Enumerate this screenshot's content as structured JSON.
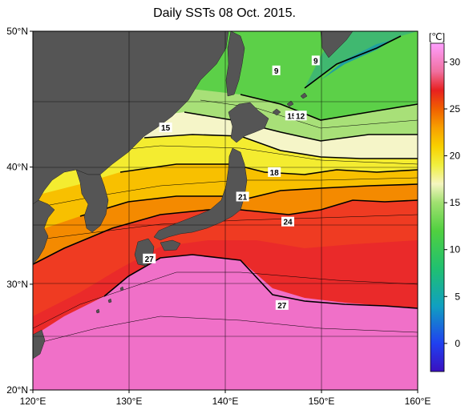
{
  "title": "Daily SSTs 08 Oct. 2015.",
  "map": {
    "lon_range": [
      120,
      160
    ],
    "lat_range": [
      20,
      50
    ],
    "x_ticks": [
      {
        "lon": 120,
        "label": "120°E"
      },
      {
        "lon": 130,
        "label": "130°E"
      },
      {
        "lon": 140,
        "label": "140°E"
      },
      {
        "lon": 150,
        "label": "150°E"
      },
      {
        "lon": 160,
        "label": "160°E"
      }
    ],
    "y_ticks": [
      {
        "lat": 50,
        "label": "50°N"
      },
      {
        "lat": 40,
        "label": "40°N"
      },
      {
        "lat": 30,
        "label": "30°N"
      },
      {
        "lat": 20,
        "label": "20°N"
      }
    ],
    "land_color": "#555555",
    "isotherm_labels": [
      {
        "text": "9",
        "lon": 145.3,
        "lat": 47.3
      },
      {
        "text": "9",
        "lon": 149.4,
        "lat": 48.0
      },
      {
        "text": "15",
        "lon": 133.8,
        "lat": 43.1
      },
      {
        "text": "15",
        "lon": 146.9,
        "lat": 44.0
      },
      {
        "text": "12",
        "lon": 147.8,
        "lat": 44.0
      },
      {
        "text": "18",
        "lon": 145.1,
        "lat": 39.6
      },
      {
        "text": "21",
        "lon": 141.8,
        "lat": 37.6
      },
      {
        "text": "24",
        "lon": 146.5,
        "lat": 35.5
      },
      {
        "text": "27",
        "lon": 132.1,
        "lat": 32.3
      },
      {
        "text": "27",
        "lon": 145.9,
        "lat": 28.1
      }
    ]
  },
  "colorbar": {
    "unit": "[℃]",
    "min": -3,
    "max": 32,
    "ticks": [
      {
        "value": 30,
        "label": "30"
      },
      {
        "value": 25,
        "label": "25"
      },
      {
        "value": 20,
        "label": "20"
      },
      {
        "value": 15,
        "label": "15"
      },
      {
        "value": 10,
        "label": "10"
      },
      {
        "value": 5,
        "label": "5"
      },
      {
        "value": 0,
        "label": "0"
      }
    ],
    "stops": [
      {
        "value": -3,
        "color": "#3a10c0"
      },
      {
        "value": 0,
        "color": "#2040f0"
      },
      {
        "value": 4,
        "color": "#10a0c0"
      },
      {
        "value": 8,
        "color": "#20c070"
      },
      {
        "value": 12,
        "color": "#50d040"
      },
      {
        "value": 15,
        "color": "#a0e070"
      },
      {
        "value": 17,
        "color": "#f5f5c0"
      },
      {
        "value": 19,
        "color": "#f0f040"
      },
      {
        "value": 21,
        "color": "#f8d000"
      },
      {
        "value": 23,
        "color": "#f8a000"
      },
      {
        "value": 25,
        "color": "#f06000"
      },
      {
        "value": 27,
        "color": "#e82020"
      },
      {
        "value": 29,
        "color": "#f070a0"
      },
      {
        "value": 32,
        "color": "#ffa0ff"
      }
    ]
  }
}
